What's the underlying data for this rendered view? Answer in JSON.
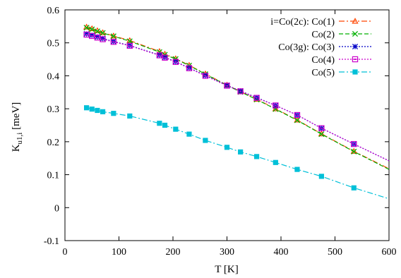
{
  "chart_data": {
    "type": "line",
    "title": "",
    "xlabel": "T [K]",
    "ylabel_main": "K",
    "ylabel_sub": "u1,i",
    "ylabel_unit": " [meV]",
    "xlim": [
      0,
      600
    ],
    "ylim": [
      -0.1,
      0.6
    ],
    "xticks": [
      0,
      100,
      200,
      300,
      400,
      500,
      600
    ],
    "yticks": [
      -0.1,
      0,
      0.1,
      0.2,
      0.3,
      0.4,
      0.5,
      0.6
    ],
    "grid": false,
    "legend_position": "top-right",
    "series": [
      {
        "name": "i=Co(2c): Co(1)",
        "color": "#ff4500",
        "marker": "triangle",
        "dash": "dash-dot",
        "points": [
          [
            40,
            0.548
          ],
          [
            50,
            0.543
          ],
          [
            60,
            0.537
          ],
          [
            70,
            0.531
          ],
          [
            90,
            0.521
          ],
          [
            120,
            0.507
          ],
          [
            175,
            0.474
          ],
          [
            185,
            0.466
          ],
          [
            205,
            0.452
          ],
          [
            230,
            0.432
          ],
          [
            260,
            0.406
          ],
          [
            300,
            0.372
          ],
          [
            325,
            0.352
          ],
          [
            355,
            0.329
          ],
          [
            390,
            0.3
          ],
          [
            430,
            0.266
          ],
          [
            475,
            0.224
          ],
          [
            535,
            0.171
          ],
          [
            600,
            0.118
          ]
        ],
        "marked": [
          40,
          50,
          60,
          70,
          90,
          120,
          175,
          185,
          205,
          230,
          260,
          300,
          325,
          355,
          390,
          430,
          475,
          535
        ]
      },
      {
        "name": "Co(2)",
        "color": "#00b000",
        "marker": "x",
        "dash": "dash",
        "points": [
          [
            40,
            0.546
          ],
          [
            50,
            0.541
          ],
          [
            60,
            0.535
          ],
          [
            70,
            0.53
          ],
          [
            90,
            0.52
          ],
          [
            120,
            0.505
          ],
          [
            175,
            0.472
          ],
          [
            185,
            0.464
          ],
          [
            205,
            0.451
          ],
          [
            230,
            0.431
          ],
          [
            260,
            0.405
          ],
          [
            300,
            0.371
          ],
          [
            325,
            0.351
          ],
          [
            355,
            0.328
          ],
          [
            390,
            0.299
          ],
          [
            430,
            0.265
          ],
          [
            475,
            0.223
          ],
          [
            535,
            0.17
          ],
          [
            600,
            0.116
          ]
        ],
        "marked": [
          40,
          50,
          60,
          70,
          90,
          120,
          175,
          185,
          205,
          230,
          260,
          300,
          325,
          355,
          390,
          430,
          475,
          535
        ]
      },
      {
        "name": "Co(3g): Co(3)",
        "color": "#0000c8",
        "marker": "star",
        "dash": "dot",
        "points": [
          [
            40,
            0.527
          ],
          [
            50,
            0.523
          ],
          [
            60,
            0.518
          ],
          [
            70,
            0.513
          ],
          [
            90,
            0.504
          ],
          [
            120,
            0.492
          ],
          [
            175,
            0.463
          ],
          [
            185,
            0.456
          ],
          [
            205,
            0.443
          ],
          [
            230,
            0.424
          ],
          [
            260,
            0.401
          ],
          [
            300,
            0.371
          ],
          [
            325,
            0.354
          ],
          [
            355,
            0.334
          ],
          [
            390,
            0.31
          ],
          [
            430,
            0.281
          ],
          [
            475,
            0.241
          ],
          [
            535,
            0.193
          ],
          [
            600,
            0.142
          ]
        ],
        "marked": [
          40,
          50,
          60,
          70,
          90,
          120,
          175,
          185,
          205,
          230,
          260,
          300,
          325,
          355,
          390,
          430,
          475,
          535
        ]
      },
      {
        "name": "Co(4)",
        "color": "#cc00cc",
        "marker": "square-open",
        "dash": "dot",
        "points": [
          [
            40,
            0.525
          ],
          [
            50,
            0.521
          ],
          [
            60,
            0.516
          ],
          [
            70,
            0.511
          ],
          [
            90,
            0.503
          ],
          [
            120,
            0.491
          ],
          [
            175,
            0.462
          ],
          [
            185,
            0.455
          ],
          [
            205,
            0.442
          ],
          [
            230,
            0.423
          ],
          [
            260,
            0.4
          ],
          [
            300,
            0.37
          ],
          [
            325,
            0.353
          ],
          [
            355,
            0.333
          ],
          [
            390,
            0.31
          ],
          [
            430,
            0.281
          ],
          [
            475,
            0.241
          ],
          [
            535,
            0.193
          ],
          [
            600,
            0.142
          ]
        ],
        "marked": [
          40,
          50,
          60,
          70,
          90,
          120,
          175,
          185,
          205,
          230,
          260,
          300,
          325,
          355,
          390,
          430,
          475,
          535
        ]
      },
      {
        "name": "Co(5)",
        "color": "#00c0d8",
        "marker": "square-filled",
        "dash": "dash-dot",
        "points": [
          [
            40,
            0.303
          ],
          [
            50,
            0.299
          ],
          [
            60,
            0.295
          ],
          [
            70,
            0.291
          ],
          [
            90,
            0.286
          ],
          [
            120,
            0.278
          ],
          [
            175,
            0.256
          ],
          [
            185,
            0.25
          ],
          [
            205,
            0.238
          ],
          [
            230,
            0.223
          ],
          [
            260,
            0.204
          ],
          [
            300,
            0.183
          ],
          [
            325,
            0.169
          ],
          [
            355,
            0.155
          ],
          [
            390,
            0.137
          ],
          [
            430,
            0.116
          ],
          [
            475,
            0.095
          ],
          [
            535,
            0.06
          ],
          [
            600,
            0.027
          ]
        ],
        "marked": [
          40,
          50,
          60,
          70,
          90,
          120,
          175,
          185,
          205,
          230,
          260,
          300,
          325,
          355,
          390,
          430,
          475,
          535
        ]
      }
    ]
  }
}
